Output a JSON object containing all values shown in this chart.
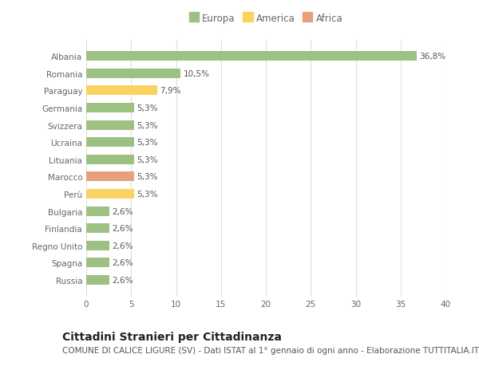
{
  "categories": [
    "Russia",
    "Spagna",
    "Regno Unito",
    "Finlandia",
    "Bulgaria",
    "Perù",
    "Marocco",
    "Lituania",
    "Ucraina",
    "Svizzera",
    "Germania",
    "Paraguay",
    "Romania",
    "Albania"
  ],
  "values": [
    2.6,
    2.6,
    2.6,
    2.6,
    2.6,
    5.3,
    5.3,
    5.3,
    5.3,
    5.3,
    5.3,
    7.9,
    10.5,
    36.8
  ],
  "colors": [
    "#9dc183",
    "#9dc183",
    "#9dc183",
    "#9dc183",
    "#9dc183",
    "#f9d262",
    "#e8a07a",
    "#9dc183",
    "#9dc183",
    "#9dc183",
    "#9dc183",
    "#f9d262",
    "#9dc183",
    "#9dc183"
  ],
  "labels": [
    "2,6%",
    "2,6%",
    "2,6%",
    "2,6%",
    "2,6%",
    "5,3%",
    "5,3%",
    "5,3%",
    "5,3%",
    "5,3%",
    "5,3%",
    "7,9%",
    "10,5%",
    "36,8%"
  ],
  "legend_labels": [
    "Europa",
    "America",
    "Africa"
  ],
  "legend_colors": [
    "#9dc183",
    "#f9d262",
    "#e8a07a"
  ],
  "title": "Cittadini Stranieri per Cittadinanza",
  "subtitle": "COMUNE DI CALICE LIGURE (SV) - Dati ISTAT al 1° gennaio di ogni anno - Elaborazione TUTTITALIA.IT",
  "xlim": [
    0,
    40
  ],
  "xticks": [
    0,
    5,
    10,
    15,
    20,
    25,
    30,
    35,
    40
  ],
  "bg_color": "#ffffff",
  "bar_height": 0.55,
  "title_fontsize": 10,
  "subtitle_fontsize": 7.5,
  "label_fontsize": 7.5,
  "tick_fontsize": 7.5,
  "legend_fontsize": 8.5,
  "grid_color": "#dddddd",
  "text_color": "#666666",
  "label_color": "#555555"
}
